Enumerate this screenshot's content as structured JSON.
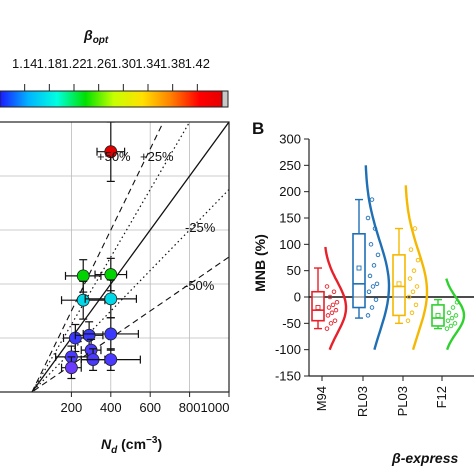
{
  "chart_data": [
    {
      "id": "colorbar",
      "type": "colorbar",
      "title": "β",
      "title_sub": "opt",
      "tick_labels": [
        "1.14",
        "1.18",
        "1.22",
        "1.26",
        "1.30",
        "1.34",
        "1.38",
        "1.42"
      ],
      "range": [
        1.1,
        1.46
      ],
      "colors": [
        "#1a1aff",
        "#00b4ff",
        "#00ffe0",
        "#00e000",
        "#c8ff00",
        "#ffe000",
        "#ff8000",
        "#ff0000",
        "#e00000",
        "#c0c0c0"
      ]
    },
    {
      "id": "scatter",
      "type": "scatter",
      "xlabel_main": "N",
      "xlabel_sub": "d",
      "xlabel_unit": " (cm",
      "xlabel_sup": "−3",
      "xlabel_close": ")",
      "xlim": [
        0,
        1000
      ],
      "ylim": [
        0,
        1000
      ],
      "x_ticks": [
        200,
        400,
        600,
        800,
        1000
      ],
      "x_tick_labels": [
        "200",
        "400",
        "600",
        "800",
        "1000"
      ],
      "annotations": {
        "plus50": "+50%",
        "plus25": "+25%",
        "minus25": "-25%",
        "minus50": "-50%"
      },
      "points": [
        {
          "x": 400,
          "y": 890,
          "xerr": 70,
          "yerr": 110,
          "color": "#e00000"
        },
        {
          "x": 260,
          "y": 430,
          "xerr": 90,
          "yerr": 60,
          "color": "#00d400"
        },
        {
          "x": 400,
          "y": 435,
          "xerr": 80,
          "yerr": 60,
          "color": "#00d400"
        },
        {
          "x": 260,
          "y": 340,
          "xerr": 110,
          "yerr": 70,
          "color": "#00d8e8"
        },
        {
          "x": 400,
          "y": 345,
          "xerr": 130,
          "yerr": 70,
          "color": "#00d8e8"
        },
        {
          "x": 220,
          "y": 200,
          "xerr": 60,
          "yerr": 50,
          "color": "#3a3aff"
        },
        {
          "x": 290,
          "y": 210,
          "xerr": 70,
          "yerr": 50,
          "color": "#3a3aff"
        },
        {
          "x": 400,
          "y": 215,
          "xerr": 140,
          "yerr": 60,
          "color": "#3a3aff"
        },
        {
          "x": 300,
          "y": 155,
          "xerr": 50,
          "yerr": 40,
          "color": "#4a3aff"
        },
        {
          "x": 200,
          "y": 130,
          "xerr": 80,
          "yerr": 40,
          "color": "#4a3aff"
        },
        {
          "x": 310,
          "y": 120,
          "xerr": 60,
          "yerr": 40,
          "color": "#4a3aff"
        },
        {
          "x": 400,
          "y": 120,
          "xerr": 150,
          "yerr": 40,
          "color": "#4a3aff"
        },
        {
          "x": 200,
          "y": 90,
          "xerr": 50,
          "yerr": 40,
          "color": "#6a3aff"
        }
      ]
    },
    {
      "id": "box",
      "type": "box",
      "panel_label": "B",
      "ylabel": "MNB (%)",
      "ylim": [
        -150,
        300
      ],
      "y_ticks": [
        -150,
        -100,
        -50,
        0,
        50,
        100,
        150,
        200,
        250,
        300
      ],
      "y_tick_labels": [
        "-150",
        "-100",
        "-50",
        "0",
        "50",
        "100",
        "150",
        "200",
        "250",
        "300"
      ],
      "xlabel": "β-express",
      "categories": [
        "M94",
        "RL03",
        "PL03",
        "F12"
      ],
      "boxes": [
        {
          "name": "M94",
          "color": "#e8202a",
          "q1": -45,
          "median": -25,
          "q3": 10,
          "whisker_low": -60,
          "whisker_high": 55,
          "mean": -20,
          "dots": [
            -60,
            -50,
            -45,
            -35,
            -30,
            -25,
            -20,
            -15,
            -10,
            0,
            10,
            20
          ]
        },
        {
          "name": "RL03",
          "color": "#1f6fb5",
          "q1": -20,
          "median": 25,
          "q3": 120,
          "whisker_low": -40,
          "whisker_high": 185,
          "mean": 55,
          "dots": [
            -35,
            -20,
            -5,
            10,
            20,
            25,
            40,
            60,
            80,
            100,
            130,
            150,
            185
          ]
        },
        {
          "name": "PL03",
          "color": "#f5b800",
          "q1": -35,
          "median": 20,
          "q3": 80,
          "whisker_low": -50,
          "whisker_high": 130,
          "mean": 25,
          "dots": [
            -45,
            -30,
            -15,
            0,
            10,
            20,
            35,
            50,
            70,
            90,
            130
          ]
        },
        {
          "name": "F12",
          "color": "#2fd12f",
          "q1": -55,
          "median": -40,
          "q3": -15,
          "whisker_low": -60,
          "whisker_high": -5,
          "mean": -35,
          "dots": [
            -60,
            -55,
            -50,
            -45,
            -40,
            -35,
            -30,
            -20,
            -10
          ]
        }
      ],
      "densities": [
        {
          "color": "#e8202a",
          "min": -100,
          "max": 95,
          "peak": -20,
          "width": 22
        },
        {
          "color": "#1f6fb5",
          "min": -100,
          "max": 250,
          "peak": 20,
          "width": 24
        },
        {
          "color": "#f5b800",
          "min": -100,
          "max": 212,
          "peak": 10,
          "width": 22
        },
        {
          "color": "#2fd12f",
          "min": -100,
          "max": 35,
          "peak": -35,
          "width": 20
        }
      ]
    }
  ]
}
